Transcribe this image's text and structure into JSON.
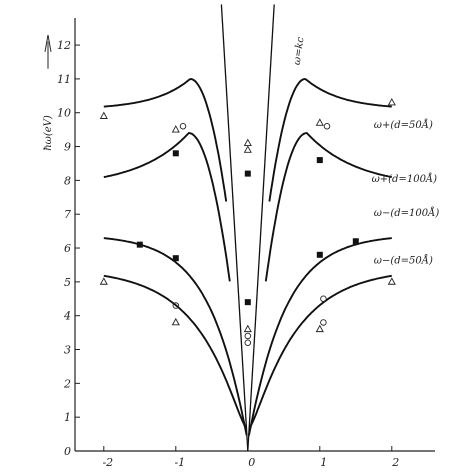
{
  "chart_data": {
    "type": "scatter",
    "title": "",
    "ylabel": "ħω(eV)",
    "xlabel": "",
    "x_ticks": [
      "-2",
      "-1",
      "0",
      "1",
      "2"
    ],
    "y_ticks": [
      "0",
      "1",
      "2",
      "3",
      "4",
      "5",
      "6",
      "7",
      "8",
      "9",
      "10",
      "11",
      "12"
    ],
    "xlim": [
      -2.4,
      2.6
    ],
    "ylim": [
      0,
      12.8
    ],
    "grid": false,
    "legend": "none",
    "curve_labels": {
      "light_line": "ω=kc",
      "upper_50": "ω+(d=50Å)",
      "upper_100": "ω+(d=100Å)",
      "lower_100": "ω−(d=100Å)",
      "lower_50": "ω−(d=50Å)"
    },
    "series": [
      {
        "marker": "square",
        "x": [
          -1.5,
          -1.0,
          -1.0,
          0.0,
          0.0,
          1.0,
          1.0,
          1.5
        ],
        "y": [
          6.1,
          5.7,
          8.8,
          4.4,
          8.2,
          5.8,
          8.6,
          6.2
        ]
      },
      {
        "marker": "triangle",
        "x": [
          -2.0,
          -2.0,
          -1.0,
          -1.0,
          0.0,
          0.0,
          0.0,
          1.0,
          1.0,
          2.0,
          2.0
        ],
        "y": [
          5.0,
          9.9,
          9.5,
          3.8,
          3.6,
          8.9,
          9.1,
          3.6,
          9.7,
          5.0,
          10.3
        ]
      },
      {
        "marker": "circle",
        "x": [
          -0.9,
          -1.0,
          0.0,
          0.0,
          1.05,
          1.05,
          1.1
        ],
        "y": [
          9.6,
          4.3,
          3.2,
          3.4,
          4.5,
          3.8,
          9.6
        ]
      }
    ]
  }
}
